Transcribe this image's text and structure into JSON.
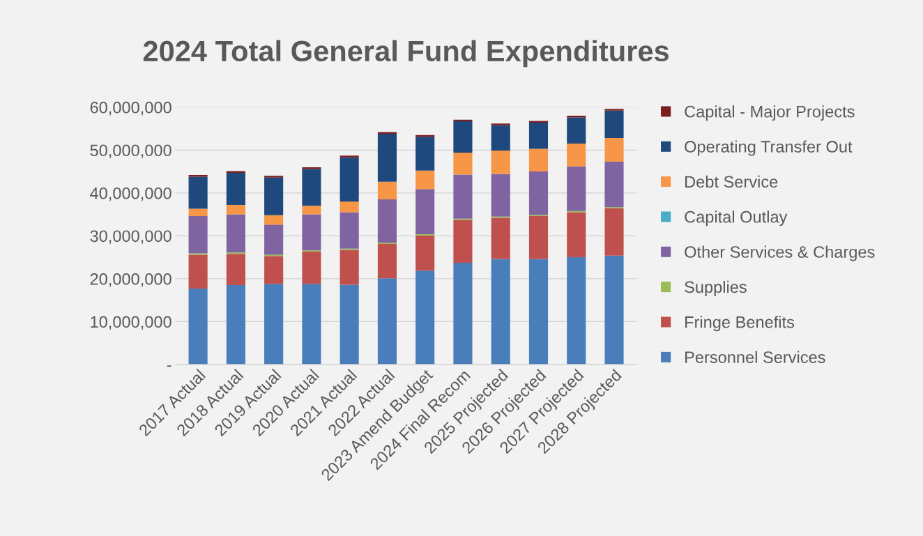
{
  "chart_data": {
    "type": "bar",
    "title": "2024 Total General Fund Expenditures",
    "stacked": true,
    "grid": "y",
    "legend": "right",
    "categories": [
      "2017 Actual",
      "2018 Actual",
      "2019 Actual",
      "2020 Actual",
      "2021 Actual",
      "2022 Actual",
      "2023 Amend Budget",
      "2024 Final Recom",
      "2025 Projected",
      "2026 Projected",
      "2027 Projected",
      "2028 Projected"
    ],
    "ylim": [
      0,
      60000000
    ],
    "yticks": [
      {
        "value": 0,
        "label": "-"
      },
      {
        "value": 10000000,
        "label": "10,000,000"
      },
      {
        "value": 20000000,
        "label": "20,000,000"
      },
      {
        "value": 30000000,
        "label": "30,000,000"
      },
      {
        "value": 40000000,
        "label": "40,000,000"
      },
      {
        "value": 50000000,
        "label": "50,000,000"
      },
      {
        "value": 60000000,
        "label": "60,000,000"
      }
    ],
    "series": [
      {
        "name": "Personnel Services",
        "color": "#4a7ebb",
        "values": [
          17700000,
          18500000,
          18800000,
          18800000,
          18600000,
          20100000,
          21900000,
          23700000,
          24600000,
          24600000,
          25000000,
          25400000
        ]
      },
      {
        "name": "Fringe Benefits",
        "color": "#c0504d",
        "values": [
          7900000,
          7300000,
          6500000,
          7500000,
          8100000,
          8000000,
          8200000,
          10000000,
          9600000,
          10000000,
          10500000,
          11000000
        ]
      },
      {
        "name": "Supplies",
        "color": "#9bbb59",
        "values": [
          300000,
          300000,
          300000,
          300000,
          300000,
          300000,
          300000,
          300000,
          300000,
          300000,
          300000,
          300000
        ]
      },
      {
        "name": "Other Services & Charges",
        "color": "#8064a2",
        "values": [
          8700000,
          8900000,
          7000000,
          8400000,
          8500000,
          10100000,
          10500000,
          10300000,
          9900000,
          10100000,
          10400000,
          10600000
        ]
      },
      {
        "name": "Capital Outlay",
        "color": "#4bacc6",
        "values": [
          null,
          null,
          null,
          null,
          null,
          null,
          null,
          null,
          null,
          null,
          null,
          null
        ]
      },
      {
        "name": "Debt Service",
        "color": "#f79646",
        "values": [
          1700000,
          2200000,
          2200000,
          2000000,
          2500000,
          4100000,
          4300000,
          5100000,
          5500000,
          5300000,
          5300000,
          5500000
        ]
      },
      {
        "name": "Operating Transfer Out",
        "color": "#1f497d",
        "values": [
          7500000,
          7500000,
          8800000,
          8600000,
          10300000,
          11200000,
          7900000,
          7300000,
          5900000,
          6100000,
          6100000,
          6400000
        ]
      },
      {
        "name": "Capital - Major Projects",
        "color": "#7b1e1e",
        "values": [
          400000,
          400000,
          400000,
          400000,
          400000,
          400000,
          400000,
          400000,
          400000,
          400000,
          400000,
          400000
        ]
      }
    ]
  }
}
